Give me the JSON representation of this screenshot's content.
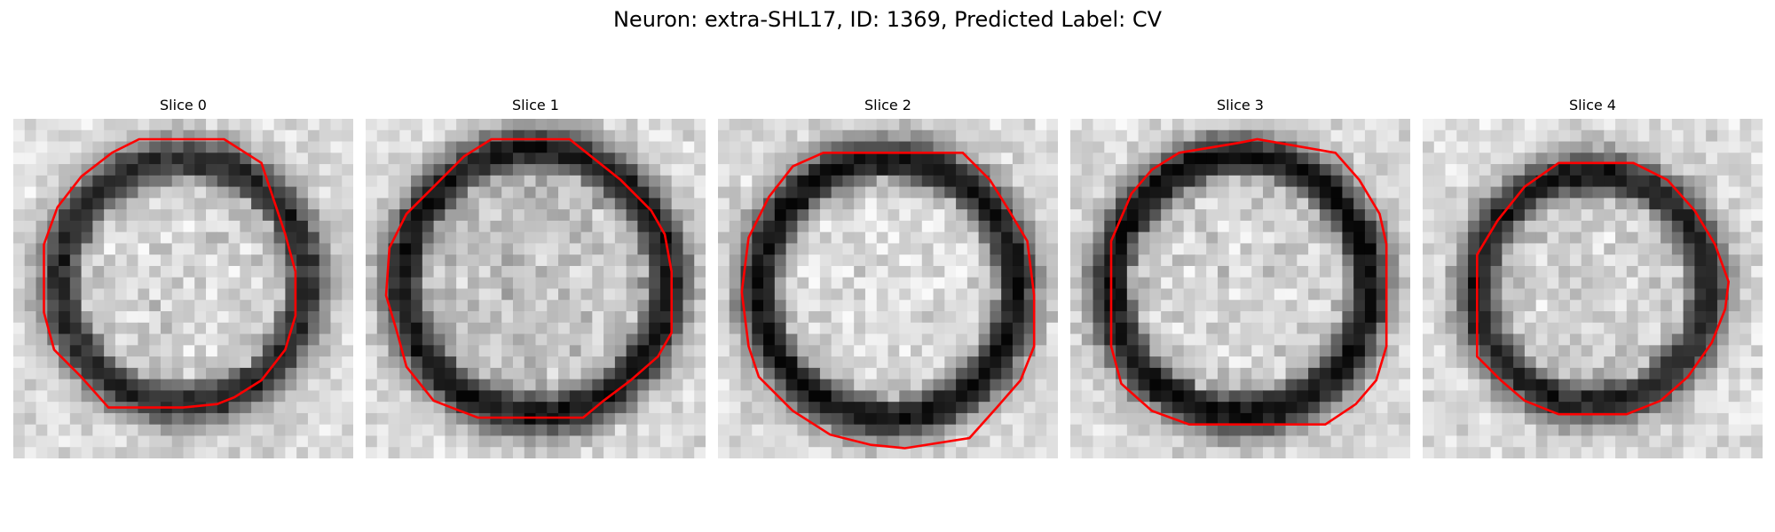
{
  "figure": {
    "title": "Neuron: extra-SHL17, ID: 1369, Predicted Label: CV",
    "contour_color": "#ff0000",
    "colormap": "grayscale"
  },
  "panels": [
    {
      "title": "Slice 0",
      "dark_ring": 0.72,
      "center_brightness": 0.82
    },
    {
      "title": "Slice 1",
      "dark_ring": 0.78,
      "center_brightness": 0.7
    },
    {
      "title": "Slice 2",
      "dark_ring": 0.8,
      "center_brightness": 0.86
    },
    {
      "title": "Slice 3",
      "dark_ring": 0.82,
      "center_brightness": 0.8
    },
    {
      "title": "Slice 4",
      "dark_ring": 0.74,
      "center_brightness": 0.78
    }
  ]
}
